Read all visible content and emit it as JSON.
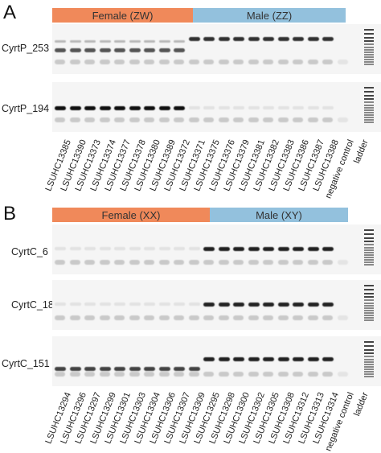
{
  "panel_a": {
    "letter": "A",
    "female_label": "Female (ZW)",
    "male_label": "Male (ZZ)",
    "female_color": "#f0895a",
    "male_color": "#93c1dd",
    "rows": [
      {
        "label": "CyrtP_253",
        "female_strong": true,
        "male_strong": true
      },
      {
        "label": "CyrtP_194",
        "female_strong": true,
        "male_strong": false
      }
    ],
    "lanes": [
      "LSUHC13385",
      "LSUHC13390",
      "LSUHC13373",
      "LSUHC13374",
      "LSUHC13377",
      "LSUHC13378",
      "LSUHC13380",
      "LSUHC13389",
      "LSUHC13372",
      "LSUHC13371",
      "LSUHC13375",
      "LSUHC13376",
      "LSUHC13379",
      "LSUHC13381",
      "LSUHC13382",
      "LSUHC13383",
      "LSUHC13386",
      "LSUHC13387",
      "LSUHC13388",
      "negative control",
      "ladder"
    ]
  },
  "panel_b": {
    "letter": "B",
    "female_label": "Female (XX)",
    "male_label": "Male (XY)",
    "female_color": "#f0895a",
    "male_color": "#93c1dd",
    "rows": [
      {
        "label": "CyrtC_6",
        "female_strong": false,
        "male_strong": true
      },
      {
        "label": "CyrtC_18",
        "female_strong": false,
        "male_strong": true
      },
      {
        "label": "CyrtC_151",
        "female_strong": true,
        "male_strong": true
      }
    ],
    "lanes": [
      "LSUHC13294",
      "LSUHC13296",
      "LSUHC13297",
      "LSUHC13299",
      "LSUHC13301",
      "LSUHC13303",
      "LSUHC13304",
      "LSUHC13306",
      "LSUHC13307",
      "LSUHC13309",
      "LSUHC13295",
      "LSUHC13298",
      "LSUHC13300",
      "LSUHC13302",
      "LSUHC13305",
      "LSUHC13308",
      "LSUHC13312",
      "LSUHC13313",
      "LSUHC13314",
      "negative control",
      "ladder"
    ]
  }
}
